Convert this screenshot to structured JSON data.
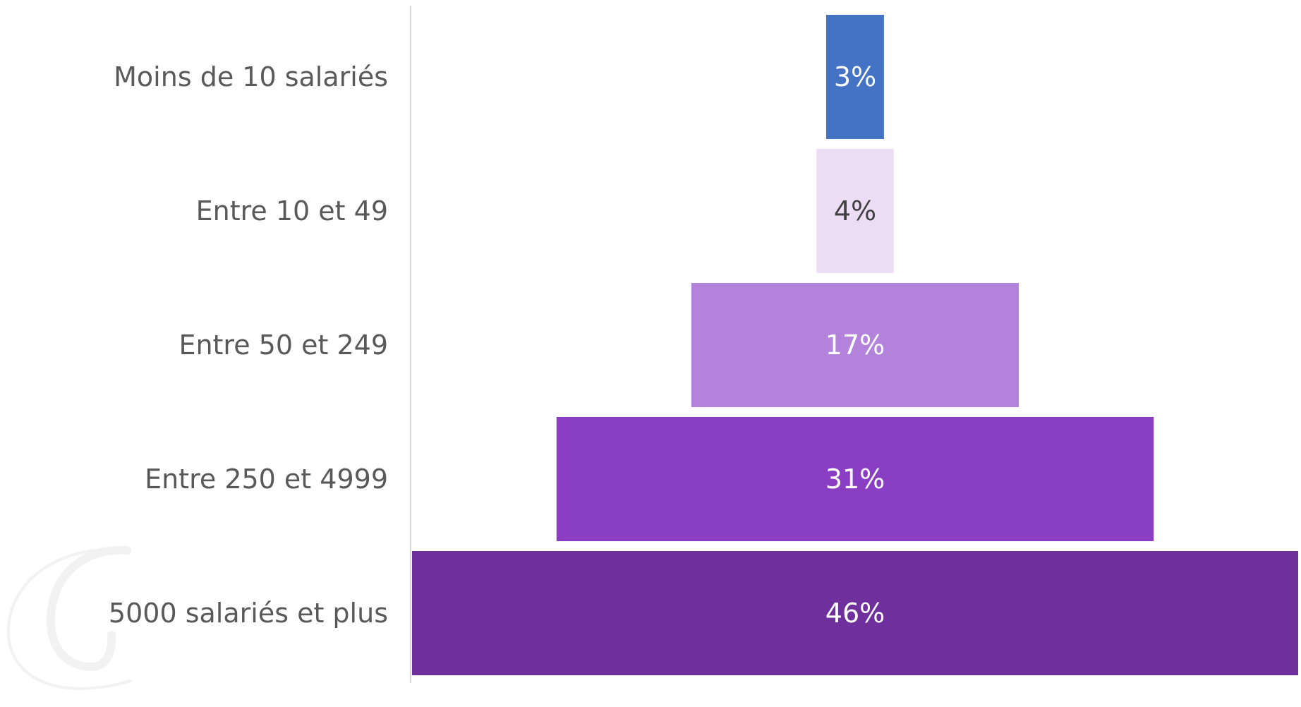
{
  "chart_data": {
    "type": "bar",
    "variant": "funnel",
    "orientation": "horizontal",
    "title": "",
    "xlabel": "",
    "ylabel": "",
    "categories": [
      "Moins de 10 salariés",
      "Entre 10 et 49",
      "Entre 50 et 249",
      "Entre 250 et 4999",
      "5000 salariés et plus"
    ],
    "values": [
      3,
      4,
      17,
      31,
      46
    ],
    "value_labels": [
      "3%",
      "4%",
      "17%",
      "31%",
      "46%"
    ],
    "colors": [
      "#4472C4",
      "#ECDDF5",
      "#B383DB",
      "#8A3EC4",
      "#6F2F9C"
    ],
    "label_colors": [
      "#FFFFFF",
      "#404040",
      "#FFFFFF",
      "#FFFFFF",
      "#FFFFFF"
    ],
    "xlim": [
      0,
      46
    ],
    "grid": false,
    "legend": "none",
    "data_labels": "center"
  },
  "style": {
    "axis_color": "#D9D9D9",
    "category_label_color": "#595959",
    "background": "#FFFFFF"
  },
  "watermark": {
    "icon": "c-logo-watermark",
    "color": "#F2F2F2"
  }
}
